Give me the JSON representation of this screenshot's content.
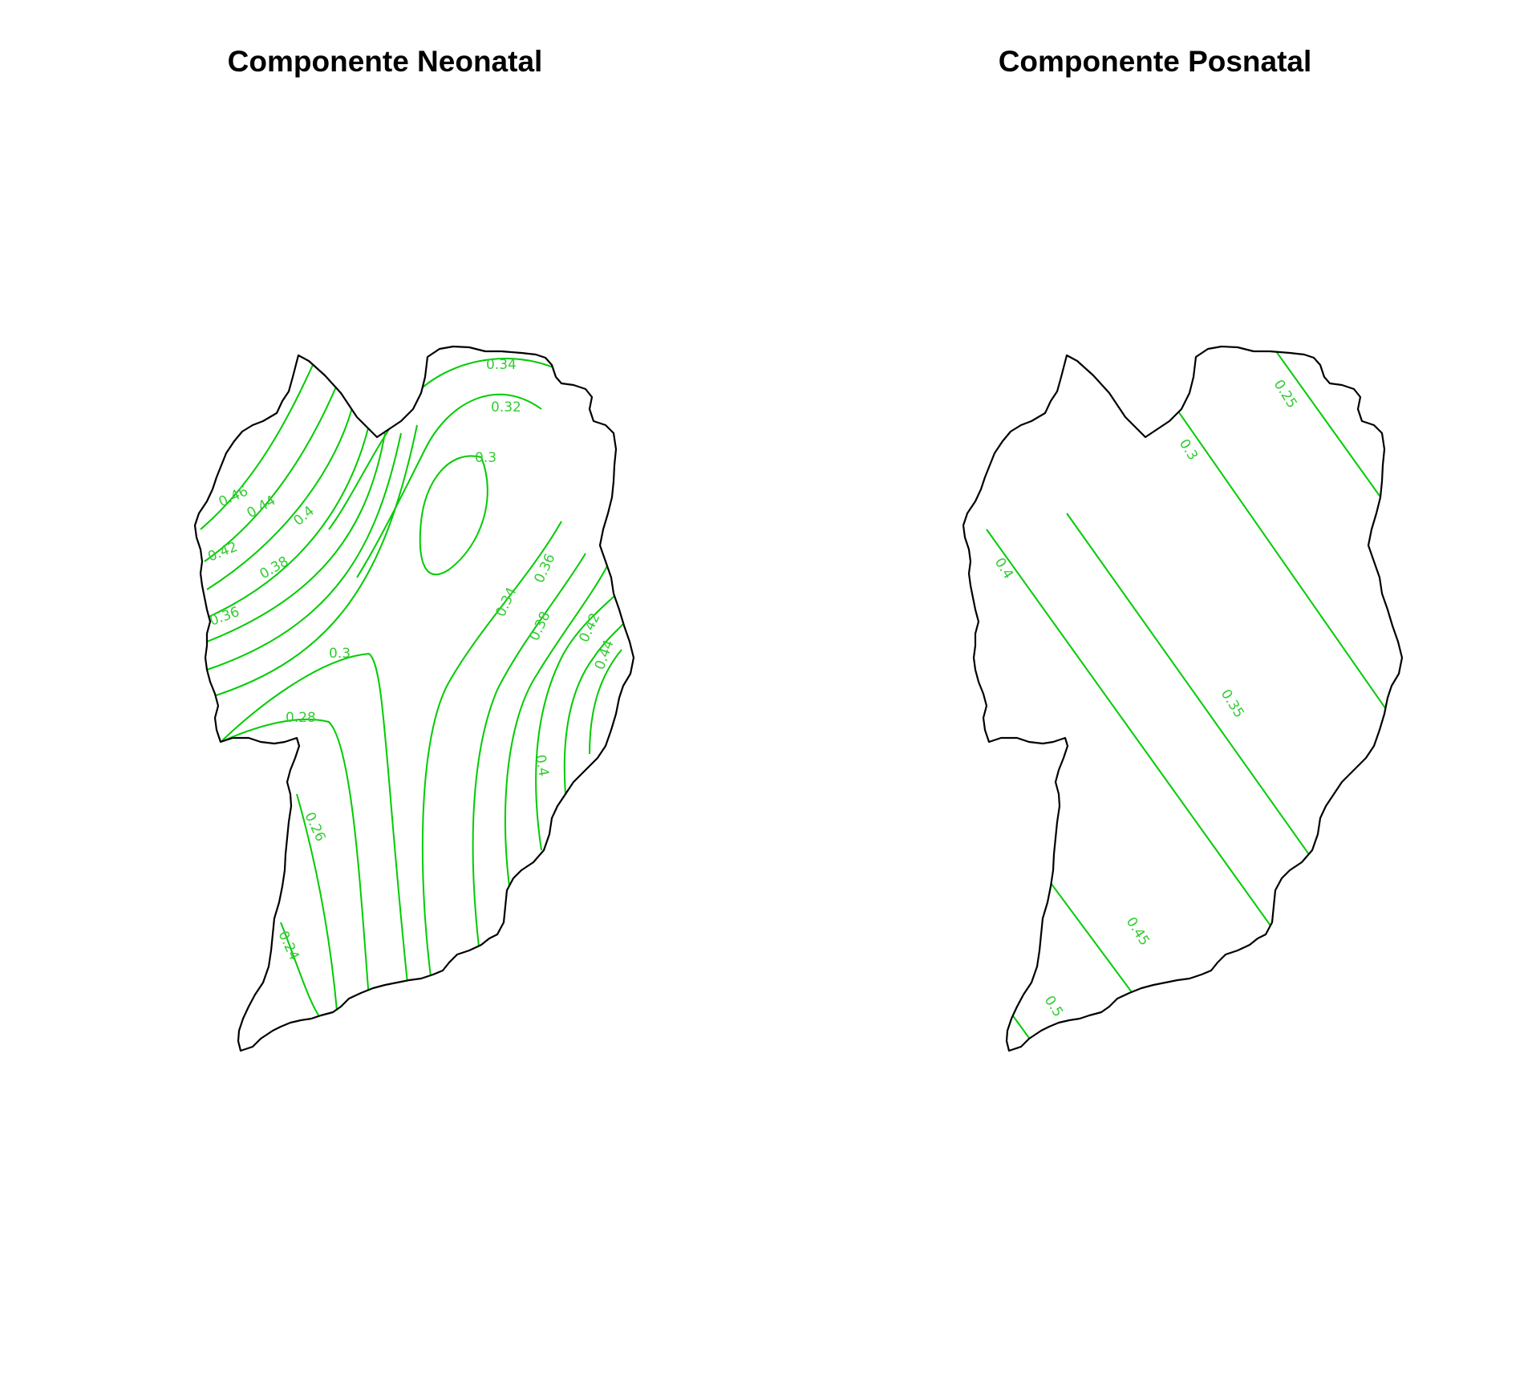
{
  "colors": {
    "contour": "#00cc00",
    "label": "#33cc33",
    "border": "#000000"
  },
  "maps": [
    {
      "title": "Componente Neonatal",
      "contour_labels": [
        "0.34",
        "0.32",
        "0.3",
        "0.46",
        "0.44",
        "0.4",
        "0.42",
        "0.38",
        "0.36",
        "0.3",
        "0.28",
        "0.36",
        "0.34",
        "0.38",
        "0.42",
        "0.44",
        "0.4",
        "0.26",
        "0.24"
      ]
    },
    {
      "title": "Componente Posnatal",
      "contour_labels": [
        "0.25",
        "0.3",
        "0.4",
        "0.35",
        "0.45",
        "0.5"
      ]
    }
  ]
}
